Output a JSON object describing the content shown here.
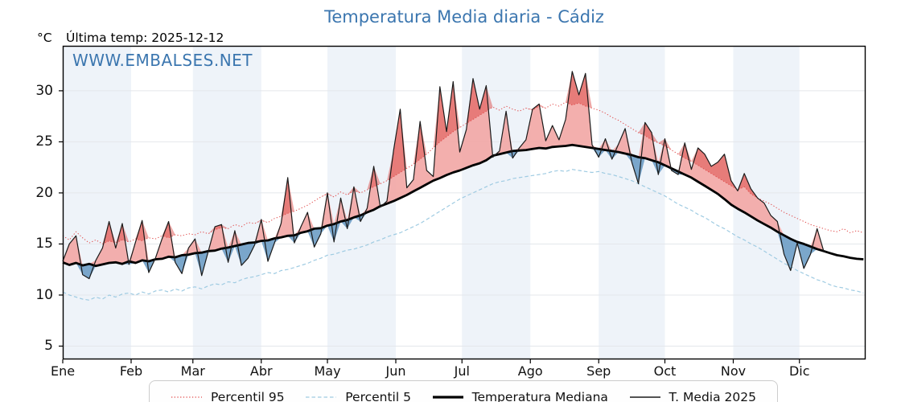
{
  "header": {
    "title": "Temperatura Media diaria - Cádiz",
    "unit_label": "°C",
    "last_temp_label": "Última temp: 2025-12-12",
    "watermark": "WWW.EMBALSES.NET",
    "title_color": "#3b76af"
  },
  "chart_data": {
    "type": "line",
    "title": "Temperatura Media diaria - Cádiz",
    "xlabel": "",
    "ylabel": "°C",
    "x_tick_labels": [
      "Ene",
      "Feb",
      "Mar",
      "Abr",
      "May",
      "Jun",
      "Jul",
      "Ago",
      "Sep",
      "Oct",
      "Nov",
      "Dic"
    ],
    "month_start_days": [
      0,
      31,
      59,
      90,
      120,
      151,
      181,
      212,
      243,
      273,
      304,
      334
    ],
    "shaded_months": [
      0,
      2,
      4,
      6,
      8,
      10
    ],
    "band_color": "#eef3f9",
    "grid_color": "#e4e7eb",
    "x_domain_days": [
      0,
      364
    ],
    "y_domain": [
      3.7,
      34.4
    ],
    "y_ticks": [
      5,
      10,
      15,
      20,
      25,
      30
    ],
    "day_step": 3,
    "legend_position": "bottom",
    "fills": {
      "above_median_color": "#f2a6a4",
      "above_p95_color": "rgba(217,62,58,0.45)",
      "below_median_color": "#6d9dc5"
    },
    "series": [
      {
        "name": "Percentil 95",
        "color": "#e14b4b",
        "style": "dotted",
        "width": 1,
        "values": [
          15.8,
          15.4,
          16.2,
          15.6,
          15.1,
          15.4,
          15.0,
          15.3,
          15.1,
          15.4,
          15.2,
          15.5,
          15.3,
          15.6,
          15.5,
          15.8,
          15.6,
          15.9,
          15.8,
          16.0,
          15.9,
          16.2,
          16.0,
          16.4,
          16.6,
          16.5,
          16.9,
          16.7,
          17.1,
          17.0,
          17.3,
          17.1,
          17.5,
          17.7,
          18.0,
          18.2,
          18.5,
          18.8,
          19.2,
          19.6,
          19.9,
          19.6,
          20.1,
          19.8,
          20.2,
          20.0,
          20.3,
          20.6,
          20.9,
          21.2,
          21.6,
          22.0,
          22.4,
          22.8,
          23.3,
          23.8,
          24.4,
          25.0,
          25.5,
          26.0,
          26.4,
          26.8,
          27.2,
          27.6,
          28.0,
          28.4,
          28.1,
          28.5,
          28.2,
          28.0,
          28.3,
          28.1,
          28.5,
          28.3,
          28.7,
          28.5,
          28.9,
          28.6,
          28.8,
          28.5,
          28.3,
          28.1,
          27.8,
          27.4,
          27.1,
          26.7,
          26.3,
          25.9,
          25.6,
          25.2,
          24.9,
          24.6,
          24.2,
          23.8,
          23.4,
          23.1,
          22.7,
          22.3,
          21.9,
          21.5,
          21.1,
          20.7,
          20.3,
          20.6,
          19.9,
          19.5,
          19.2,
          18.9,
          18.5,
          18.1,
          17.8,
          17.5,
          17.2,
          16.9,
          16.7,
          16.5,
          16.3,
          16.2,
          16.5,
          16.1,
          16.3,
          16.1
        ]
      },
      {
        "name": "Percentil 5",
        "color": "#9fcbe2",
        "style": "dashed",
        "width": 1.2,
        "values": [
          10.3,
          10.0,
          9.8,
          9.6,
          9.5,
          9.8,
          9.6,
          10.0,
          9.8,
          10.1,
          10.2,
          10.0,
          10.3,
          10.1,
          10.4,
          10.5,
          10.3,
          10.6,
          10.4,
          10.7,
          10.8,
          10.6,
          10.9,
          11.1,
          11.0,
          11.3,
          11.2,
          11.5,
          11.7,
          11.8,
          12.0,
          12.2,
          12.1,
          12.4,
          12.5,
          12.7,
          12.9,
          13.1,
          13.4,
          13.6,
          13.9,
          14.0,
          14.2,
          14.4,
          14.5,
          14.7,
          14.9,
          15.2,
          15.4,
          15.7,
          15.9,
          16.1,
          16.4,
          16.7,
          17.0,
          17.4,
          17.8,
          18.2,
          18.6,
          19.0,
          19.4,
          19.7,
          20.0,
          20.3,
          20.6,
          20.9,
          21.1,
          21.2,
          21.4,
          21.5,
          21.6,
          21.7,
          21.8,
          21.9,
          22.1,
          22.2,
          22.1,
          22.3,
          22.2,
          22.1,
          22.0,
          22.1,
          21.9,
          21.8,
          21.6,
          21.4,
          21.2,
          20.9,
          20.6,
          20.3,
          20.0,
          19.7,
          19.3,
          18.9,
          18.6,
          18.3,
          17.9,
          17.6,
          17.2,
          16.8,
          16.5,
          16.1,
          15.7,
          15.4,
          15.0,
          14.7,
          14.3,
          13.9,
          13.5,
          13.1,
          12.8,
          12.4,
          12.1,
          11.8,
          11.5,
          11.3,
          11.0,
          10.8,
          10.7,
          10.5,
          10.4,
          10.2
        ]
      },
      {
        "name": "Temperatura Mediana",
        "color": "#000000",
        "style": "solid",
        "width": 2.8,
        "values": [
          13.2,
          12.95,
          13.15,
          12.9,
          13.05,
          12.85,
          13.0,
          13.15,
          13.2,
          13.05,
          13.3,
          13.15,
          13.4,
          13.3,
          13.5,
          13.55,
          13.75,
          13.7,
          13.9,
          13.95,
          14.1,
          14.15,
          14.3,
          14.35,
          14.55,
          14.65,
          14.8,
          14.95,
          15.1,
          15.15,
          15.3,
          15.35,
          15.55,
          15.65,
          15.8,
          15.85,
          16.1,
          16.25,
          16.5,
          16.55,
          16.8,
          16.95,
          17.2,
          17.35,
          17.6,
          17.8,
          18.1,
          18.35,
          18.7,
          18.95,
          19.2,
          19.5,
          19.8,
          20.15,
          20.5,
          20.85,
          21.2,
          21.45,
          21.75,
          22.0,
          22.2,
          22.45,
          22.7,
          22.9,
          23.2,
          23.65,
          23.8,
          23.95,
          24.1,
          24.15,
          24.2,
          24.3,
          24.4,
          24.35,
          24.5,
          24.55,
          24.6,
          24.7,
          24.6,
          24.5,
          24.4,
          24.3,
          24.2,
          24.1,
          24.0,
          23.85,
          23.7,
          23.5,
          23.4,
          23.2,
          23.0,
          22.7,
          22.4,
          22.1,
          21.8,
          21.5,
          21.1,
          20.7,
          20.3,
          19.9,
          19.4,
          18.85,
          18.45,
          18.1,
          17.7,
          17.3,
          16.95,
          16.6,
          16.2,
          15.85,
          15.5,
          15.2,
          15.0,
          14.75,
          14.5,
          14.3,
          14.1,
          13.9,
          13.8,
          13.65,
          13.55,
          13.5
        ]
      },
      {
        "name": "T. Media 2025",
        "color": "#1a1a1a",
        "style": "solid",
        "width": 1.2,
        "values": [
          13.3,
          15.0,
          15.8,
          12.0,
          11.6,
          13.4,
          14.6,
          17.2,
          14.6,
          17.0,
          13.0,
          15.2,
          17.3,
          12.2,
          13.6,
          15.5,
          17.2,
          13.2,
          12.1,
          14.6,
          15.5,
          11.9,
          14.3,
          16.7,
          16.9,
          13.2,
          16.3,
          12.9,
          13.6,
          14.9,
          17.4,
          13.3,
          15.1,
          17.0,
          21.5,
          15.1,
          16.7,
          18.1,
          14.7,
          16.0,
          20.0,
          15.2,
          19.5,
          16.5,
          20.6,
          17.2,
          18.5,
          22.6,
          18.6,
          19.2,
          24.2,
          28.2,
          20.5,
          21.3,
          27.0,
          22.2,
          21.6,
          30.4,
          26.0,
          30.9,
          24.0,
          26.2,
          31.2,
          28.2,
          30.5,
          23.5,
          24.1,
          28.0,
          23.4,
          24.4,
          25.2,
          28.2,
          28.7,
          25.1,
          26.6,
          25.2,
          27.2,
          31.9,
          29.6,
          31.7,
          24.7,
          23.5,
          25.3,
          23.3,
          24.8,
          26.3,
          23.0,
          20.9,
          26.9,
          25.9,
          21.8,
          25.3,
          22.2,
          21.8,
          24.9,
          22.3,
          24.4,
          23.8,
          22.6,
          23.0,
          23.8,
          21.2,
          20.2,
          21.9,
          20.4,
          19.5,
          19.0,
          17.8,
          17.2,
          14.0,
          12.4,
          15.1,
          12.6,
          14.0,
          16.5,
          14.3
        ]
      }
    ]
  },
  "legend": {
    "items": [
      {
        "label": "Percentil 95"
      },
      {
        "label": "Percentil 5"
      },
      {
        "label": "Temperatura Mediana"
      },
      {
        "label": "T. Media 2025"
      }
    ]
  }
}
